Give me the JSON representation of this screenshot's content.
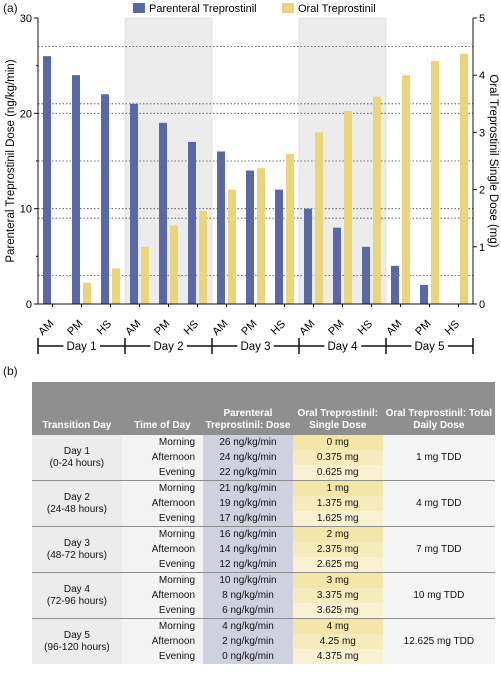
{
  "panel_a_label": "(a)",
  "panel_b_label": "(b)",
  "chart_data": {
    "type": "bar",
    "categories": [
      "AM",
      "PM",
      "HS",
      "AM",
      "PM",
      "HS",
      "AM",
      "PM",
      "HS",
      "AM",
      "PM",
      "HS",
      "AM",
      "PM",
      "HS"
    ],
    "groups": [
      "Day 1",
      "Day 2",
      "Day 3",
      "Day 4",
      "Day 5"
    ],
    "series": [
      {
        "name": "Parenteral Treprostinil",
        "axis": "left",
        "values": [
          26,
          24,
          22,
          21,
          19,
          17,
          16,
          14,
          12,
          10,
          8,
          6,
          4,
          2,
          0
        ]
      },
      {
        "name": "Oral Treprostinil",
        "axis": "right",
        "values": [
          0,
          0.375,
          0.625,
          1,
          1.375,
          1.625,
          2,
          2.375,
          2.625,
          3,
          3.375,
          3.625,
          4,
          4.25,
          4.375
        ]
      }
    ],
    "ylabel": "Parenteral Treprostinil Dose (ng/kg/min)",
    "y2label": "Oral Treprostinil Single Dose (mg)",
    "ylim": [
      0,
      30
    ],
    "y2lim": [
      0,
      5
    ],
    "yticks": [
      "0",
      "10",
      "20",
      "30"
    ],
    "y2ticks": [
      "0",
      "1",
      "2",
      "3",
      "4",
      "5"
    ],
    "shaded_days": [
      "Day 2",
      "Day 4"
    ],
    "legend": "top",
    "colors": {
      "parenteral": "#5868a8",
      "oral": "#ead57a",
      "shade": "#ececec"
    }
  },
  "table": {
    "headers": [
      "Transition Day",
      "Time of Day",
      "Parenteral Treprostinil: Dose",
      "Oral Treprostinil: Single Dose",
      "Oral Treprostinil: Total Daily Dose"
    ],
    "groups": [
      {
        "day": "Day 1",
        "range": "(0-24 hours)",
        "tdd": "1 mg TDD",
        "rows": [
          {
            "time": "Morning",
            "par": "26 ng/kg/min",
            "oral": "0 mg"
          },
          {
            "time": "Afternoon",
            "par": "24 ng/kg/min",
            "oral": "0.375 mg"
          },
          {
            "time": "Evening",
            "par": "22 ng/kg/min",
            "oral": "0.625 mg"
          }
        ]
      },
      {
        "day": "Day 2",
        "range": "(24-48 hours)",
        "tdd": "4 mg TDD",
        "rows": [
          {
            "time": "Morning",
            "par": "21 ng/kg/min",
            "oral": "1 mg"
          },
          {
            "time": "Afternoon",
            "par": "19 ng/kg/min",
            "oral": "1.375 mg"
          },
          {
            "time": "Evening",
            "par": "17 ng/kg/min",
            "oral": "1.625 mg"
          }
        ]
      },
      {
        "day": "Day 3",
        "range": "(48-72 hours)",
        "tdd": "7 mg TDD",
        "rows": [
          {
            "time": "Morning",
            "par": "16 ng/kg/min",
            "oral": "2 mg"
          },
          {
            "time": "Afternoon",
            "par": "14 ng/kg/min",
            "oral": "2.375 mg"
          },
          {
            "time": "Evening",
            "par": "12 ng/kg/min",
            "oral": "2.625 mg"
          }
        ]
      },
      {
        "day": "Day 4",
        "range": "(72-96 hours)",
        "tdd": "10 mg TDD",
        "rows": [
          {
            "time": "Morning",
            "par": "10 ng/kg/min",
            "oral": "3 mg"
          },
          {
            "time": "Afternoon",
            "par": "8 ng/kg/min",
            "oral": "3.375 mg"
          },
          {
            "time": "Evening",
            "par": "6 ng/kg/min",
            "oral": "3.625 mg"
          }
        ]
      },
      {
        "day": "Day 5",
        "range": "(96-120 hours)",
        "tdd": "12.625 mg TDD",
        "rows": [
          {
            "time": "Morning",
            "par": "4 ng/kg/min",
            "oral": "4 mg"
          },
          {
            "time": "Afternoon",
            "par": "2 ng/kg/min",
            "oral": "4.25 mg"
          },
          {
            "time": "Evening",
            "par": "0 ng/kg/min",
            "oral": "4.375 mg"
          }
        ]
      }
    ]
  }
}
